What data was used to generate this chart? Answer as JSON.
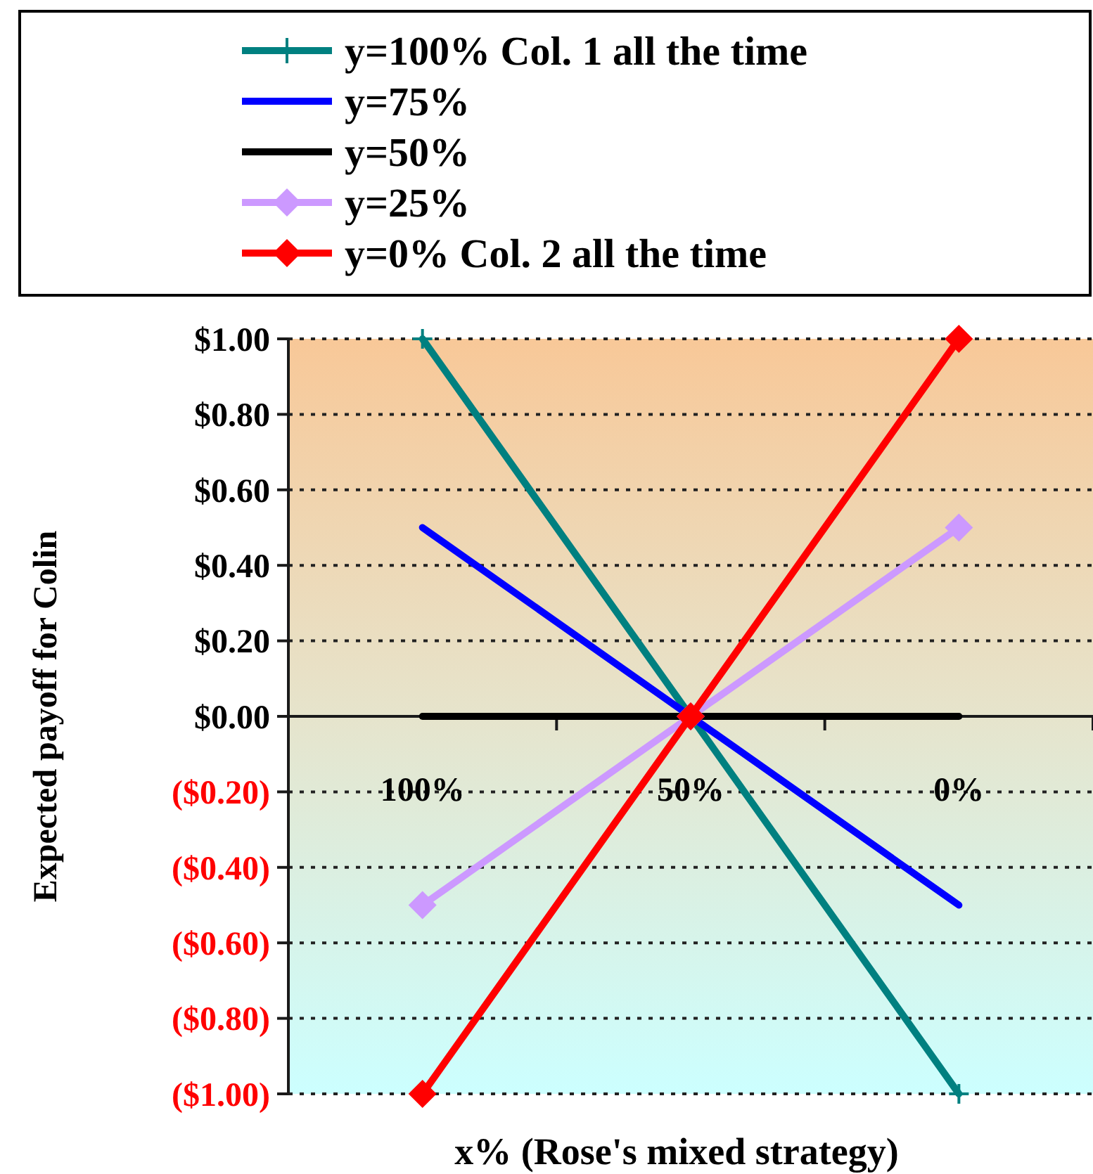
{
  "chart_data": {
    "type": "line",
    "xlabel": "x% (Rose's mixed strategy)",
    "ylabel": "Expected payoff for Colin",
    "categories": [
      "100%",
      "50%",
      "0%"
    ],
    "series": [
      {
        "name": "y=100% Col. 1 all the time",
        "color": "#008080",
        "values": [
          1,
          0,
          -1
        ],
        "marker": "cross"
      },
      {
        "name": "y=75%",
        "color": "#0000ff",
        "values": [
          0.5,
          0,
          -0.5
        ],
        "marker": "none"
      },
      {
        "name": "y=50%",
        "color": "#000000",
        "values": [
          0,
          0,
          0
        ],
        "marker": "none"
      },
      {
        "name": "y=25%",
        "color": "#cc99ff",
        "values": [
          -0.5,
          0,
          0.5
        ],
        "marker": "diamond"
      },
      {
        "name": "y=0% Col. 2 all the time",
        "color": "#ff0000",
        "values": [
          -1,
          0,
          1
        ],
        "marker": "diamond"
      }
    ],
    "ylim": [
      -1,
      1
    ],
    "yticks": [
      {
        "value": -1,
        "label": "($1.00)"
      },
      {
        "value": -0.8,
        "label": "($0.80)"
      },
      {
        "value": -0.6,
        "label": "($0.60)"
      },
      {
        "value": -0.4,
        "label": "($0.40)"
      },
      {
        "value": -0.2,
        "label": "($0.20)"
      },
      {
        "value": 0,
        "label": "$0.00"
      },
      {
        "value": 0.2,
        "label": "$0.20"
      },
      {
        "value": 0.4,
        "label": "$0.40"
      },
      {
        "value": 0.6,
        "label": "$0.60"
      },
      {
        "value": 0.8,
        "label": "$0.80"
      },
      {
        "value": 1,
        "label": "$1.00"
      }
    ],
    "grid": "y",
    "legend": "top",
    "line_style": "solid"
  }
}
